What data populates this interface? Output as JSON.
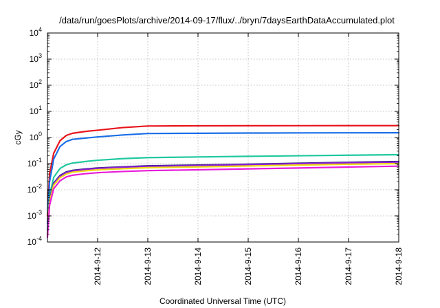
{
  "chart_data": {
    "type": "line",
    "title": "/data/run/goesPlots/archive/2014-09-17/flux/../bryn/7daysEarthDataAccumulated.plot",
    "xlabel": "Coordinated Universal Time (UTC)",
    "ylabel": "cGy",
    "y_scale": "log",
    "ylim": [
      0.0001,
      10000
    ],
    "xlim": [
      "2014-09-11",
      "2014-09-18"
    ],
    "x_ticks": [
      "2014-9-12",
      "2014-9-13",
      "2014-9-14",
      "2014-9-15",
      "2014-9-16",
      "2014-9-17",
      "2014-9-18"
    ],
    "y_ticks": [
      {
        "base": "10",
        "exp": "-4",
        "value": 0.0001
      },
      {
        "base": "10",
        "exp": "-3",
        "value": 0.001
      },
      {
        "base": "10",
        "exp": "-2",
        "value": 0.01
      },
      {
        "base": "10",
        "exp": "-1",
        "value": 0.1
      },
      {
        "base": "10",
        "exp": "0",
        "value": 1
      },
      {
        "base": "10",
        "exp": "1",
        "value": 10
      },
      {
        "base": "10",
        "exp": "2",
        "value": 100
      },
      {
        "base": "10",
        "exp": "3",
        "value": 1000
      },
      {
        "base": "10",
        "exp": "4",
        "value": 10000
      }
    ],
    "grid": true,
    "x": [
      "2014-09-11",
      "2014-09-11T01:00",
      "2014-09-11T03:00",
      "2014-09-11T06:00",
      "2014-09-11T09:00",
      "2014-09-11T12:00",
      "2014-09-11T18:00",
      "2014-09-12",
      "2014-09-12T12:00",
      "2014-09-13",
      "2014-09-14",
      "2014-09-15",
      "2014-09-16",
      "2014-09-17",
      "2014-09-18"
    ],
    "series": [
      {
        "color": "#e8141c",
        "values": [
          0.001,
          0.04,
          0.25,
          0.75,
          1.2,
          1.45,
          1.7,
          1.9,
          2.4,
          2.75,
          2.8,
          2.82,
          2.83,
          2.84,
          2.85
        ]
      },
      {
        "color": "#1a6ee8",
        "values": [
          0.0005,
          0.02,
          0.15,
          0.45,
          0.7,
          0.85,
          0.95,
          1.05,
          1.25,
          1.42,
          1.45,
          1.48,
          1.5,
          1.51,
          1.52
        ]
      },
      {
        "color": "#1fc8a0",
        "values": [
          0.0003,
          0.006,
          0.03,
          0.065,
          0.09,
          0.105,
          0.12,
          0.135,
          0.155,
          0.17,
          0.18,
          0.19,
          0.2,
          0.21,
          0.22
        ]
      },
      {
        "color": "#1c1c6a",
        "values": [
          0.0002,
          0.004,
          0.018,
          0.035,
          0.048,
          0.055,
          0.062,
          0.068,
          0.075,
          0.082,
          0.088,
          0.095,
          0.103,
          0.112,
          0.12
        ]
      },
      {
        "color": "#8a1fd8",
        "values": [
          0.0002,
          0.0038,
          0.017,
          0.033,
          0.046,
          0.053,
          0.06,
          0.066,
          0.073,
          0.079,
          0.085,
          0.092,
          0.1,
          0.108,
          0.115
        ]
      },
      {
        "color": "#f0d814",
        "values": [
          0.00018,
          0.0033,
          0.015,
          0.029,
          0.04,
          0.047,
          0.053,
          0.058,
          0.064,
          0.07,
          0.075,
          0.081,
          0.088,
          0.095,
          0.1
        ]
      },
      {
        "color": "#e81cd8",
        "values": [
          0.00015,
          0.0025,
          0.011,
          0.022,
          0.031,
          0.036,
          0.041,
          0.045,
          0.05,
          0.054,
          0.058,
          0.063,
          0.068,
          0.074,
          0.08
        ]
      }
    ]
  }
}
